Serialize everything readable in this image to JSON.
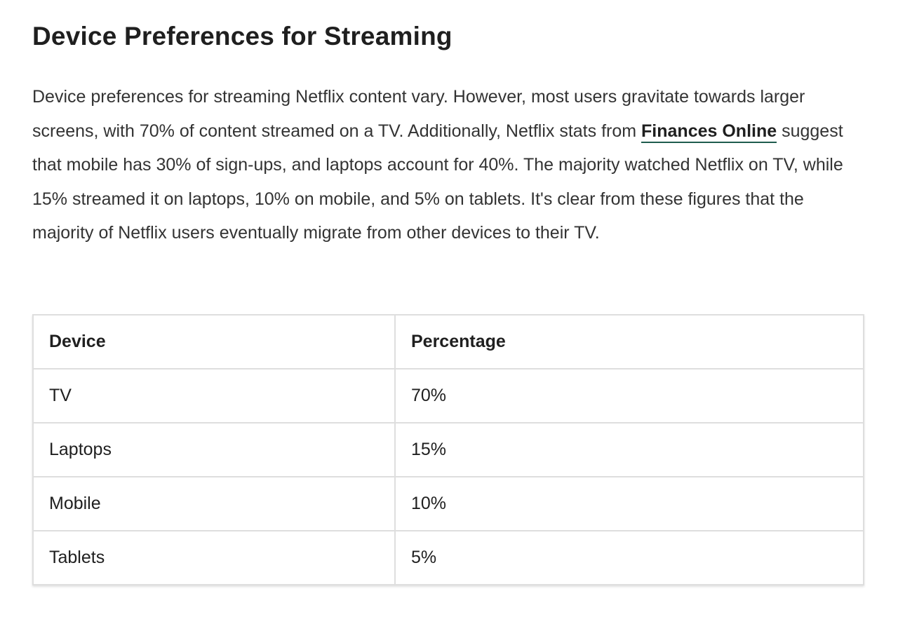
{
  "article": {
    "title": "Device Preferences for Streaming",
    "intro": {
      "part1": "Device preferences for streaming Netflix content vary. However, most users gravitate towards larger screens, with 70% of content streamed on a TV. Additionally, Netflix stats from ",
      "link_text": "Finances Online",
      "part2": " suggest that mobile has 30% of sign-ups, and laptops account for 40%. The majority watched Netflix on TV, while 15% streamed it on laptops, 10% on mobile, and 5% on tablets. It's clear from these figures that the majority of Netflix users eventually migrate from other devices to their TV."
    },
    "colors": {
      "link_underline": "#1f5c4e",
      "table_border": "#dedede"
    }
  },
  "table": {
    "headers": [
      "Device",
      "Percentage"
    ],
    "rows": [
      [
        "TV",
        "70%"
      ],
      [
        "Laptops",
        "15%"
      ],
      [
        "Mobile",
        "10%"
      ],
      [
        "Tablets",
        "5%"
      ]
    ]
  }
}
